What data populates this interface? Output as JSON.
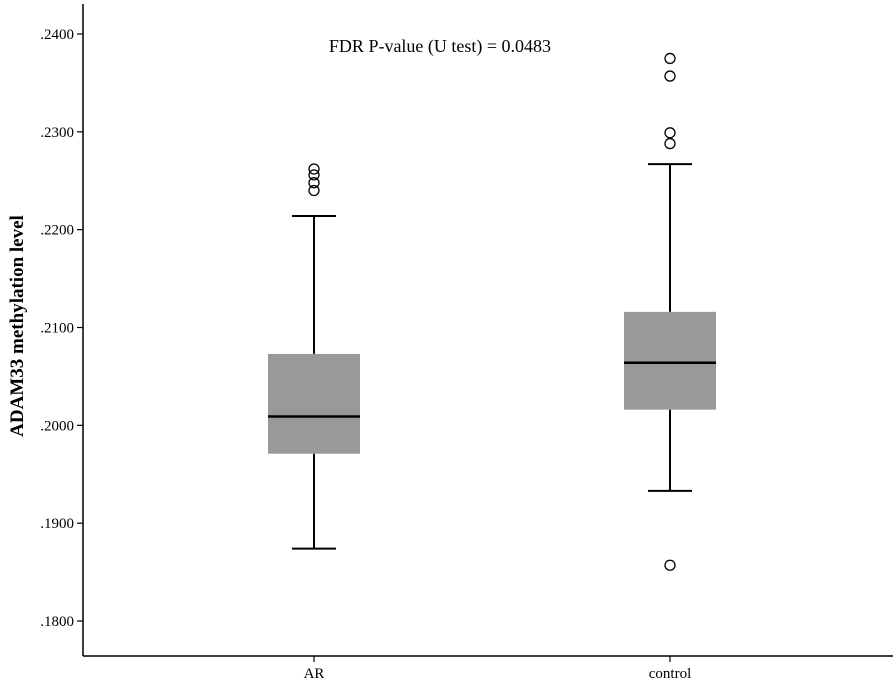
{
  "chart_data": {
    "type": "box",
    "title": "",
    "annotation": "FDR P-value (U test) = 0.0483",
    "xlabel": "",
    "ylabel": "ADAM33 methylation level",
    "ylim": [
      0.178,
      0.242
    ],
    "yticks": [
      0.18,
      0.19,
      0.2,
      0.21,
      0.22,
      0.23,
      0.24
    ],
    "ytick_labels": [
      ".1800",
      ".1900",
      ".2000",
      ".2100",
      ".2200",
      ".2300",
      ".2400"
    ],
    "categories": [
      "AR",
      "control"
    ],
    "boxes": [
      {
        "category": "AR",
        "whisker_low": 0.1874,
        "q1": 0.1971,
        "median": 0.2009,
        "q3": 0.2073,
        "whisker_high": 0.2214,
        "outliers": [
          0.224,
          0.2248,
          0.2256,
          0.2262
        ]
      },
      {
        "category": "control",
        "whisker_low": 0.1933,
        "q1": 0.2016,
        "median": 0.2064,
        "q3": 0.2116,
        "whisker_high": 0.2267,
        "outliers": [
          0.1857,
          0.2288,
          0.2299,
          0.2357,
          0.2375
        ]
      }
    ],
    "box_color": "#999999",
    "grid": false,
    "legend": "none"
  }
}
